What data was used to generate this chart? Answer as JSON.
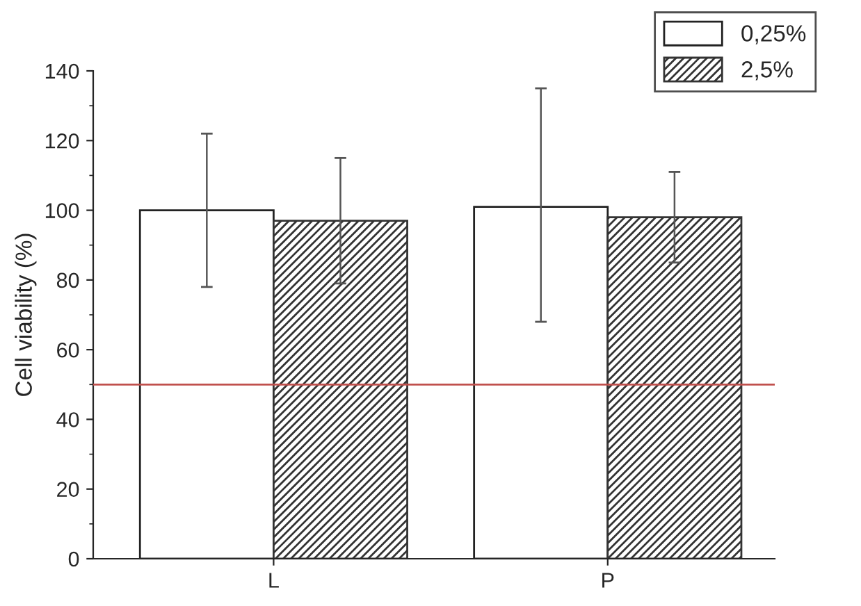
{
  "chart_data": {
    "type": "bar",
    "ylabel": "Cell viability (%)",
    "categories": [
      "L",
      "P"
    ],
    "series": [
      {
        "name": "0,25%",
        "color": "#ffffff",
        "values": [
          100,
          101
        ],
        "errors": [
          [
            78,
            122
          ],
          [
            68,
            135
          ]
        ]
      },
      {
        "name": "2,5%",
        "color": "#333333",
        "values": [
          97,
          98
        ],
        "errors": [
          [
            79,
            115
          ],
          [
            85,
            111
          ]
        ]
      }
    ],
    "ylim": [
      0,
      140
    ],
    "yticks": [
      0,
      20,
      40,
      60,
      80,
      100,
      120,
      140
    ],
    "ref_lines": [
      {
        "axis": "y",
        "value": 50,
        "color": "#c0504d"
      }
    ],
    "legend": "top right",
    "grid": false
  }
}
